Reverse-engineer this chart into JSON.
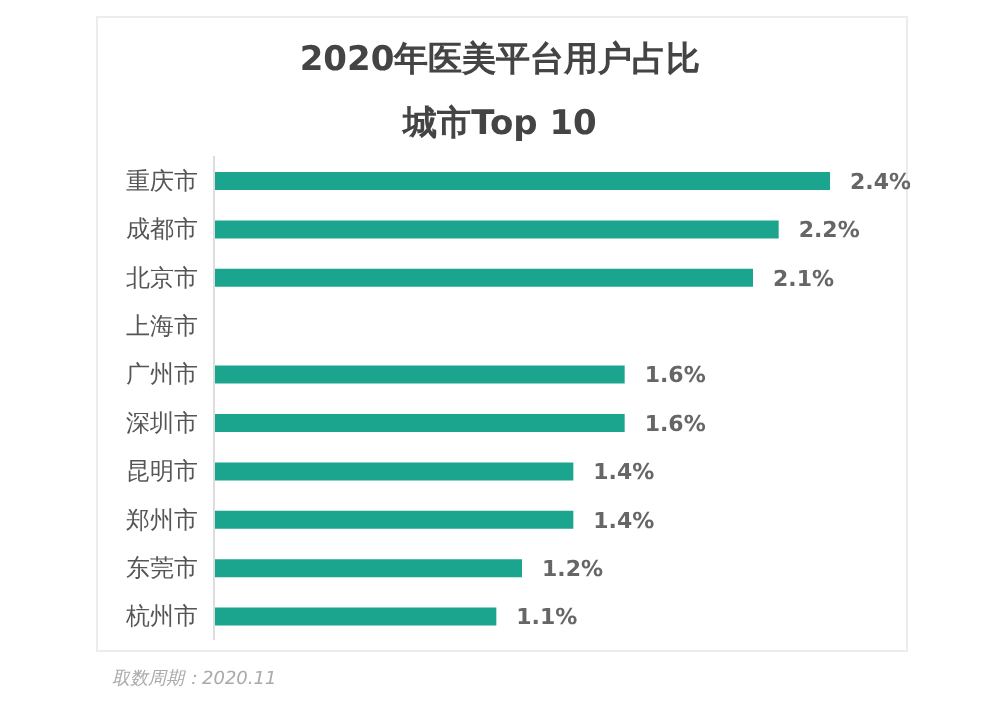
{
  "chart_data": {
    "type": "bar",
    "orientation": "horizontal",
    "title": "2020年医美平台用户占比",
    "subtitle": "城市Top 10",
    "categories": [
      "重庆市",
      "成都市",
      "北京市",
      "上海市",
      "广州市",
      "深圳市",
      "昆明市",
      "郑州市",
      "东莞市",
      "杭州市"
    ],
    "values": [
      2.4,
      2.2,
      2.1,
      null,
      1.6,
      1.6,
      1.4,
      1.4,
      1.2,
      1.1
    ],
    "value_labels": [
      "2.4%",
      "2.2%",
      "2.1%",
      null,
      "1.6%",
      "1.6%",
      "1.4%",
      "1.4%",
      "1.2%",
      "1.1%"
    ],
    "color": "#1ba58e",
    "annotations": [
      "取数周期：2020.11"
    ]
  }
}
